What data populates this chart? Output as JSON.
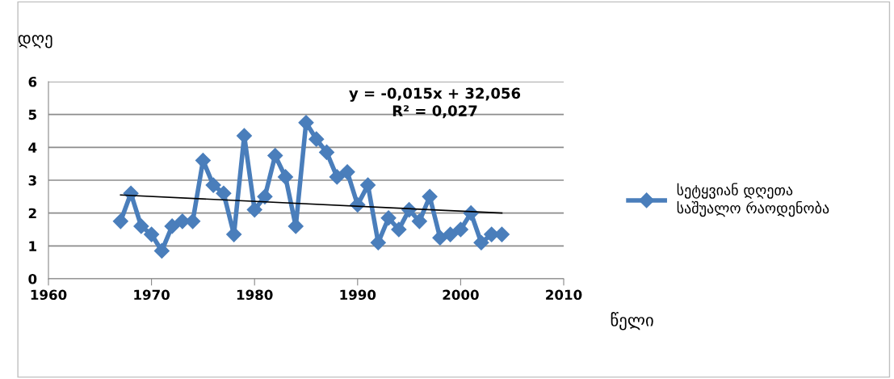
{
  "chart_data": {
    "type": "line",
    "ylabel": "დღე",
    "xlabel": "წელი",
    "x": [
      1967,
      1968,
      1969,
      1970,
      1971,
      1972,
      1973,
      1974,
      1975,
      1976,
      1977,
      1978,
      1979,
      1980,
      1981,
      1982,
      1983,
      1984,
      1985,
      1986,
      1987,
      1988,
      1989,
      1990,
      1991,
      1992,
      1993,
      1994,
      1995,
      1996,
      1997,
      1998,
      1999,
      2000,
      2001,
      2002,
      2003,
      2004
    ],
    "series": [
      {
        "name": "სეტყვიან დღეთა საშუალო რაოდენობა",
        "color": "#4a7ebb",
        "marker": "diamond",
        "values": [
          1.75,
          2.6,
          1.6,
          1.35,
          0.85,
          1.6,
          1.75,
          1.75,
          3.6,
          2.85,
          2.6,
          1.35,
          4.35,
          2.1,
          2.5,
          3.75,
          3.1,
          1.6,
          4.75,
          4.25,
          3.85,
          3.1,
          3.25,
          2.25,
          2.85,
          1.1,
          1.85,
          1.5,
          2.1,
          1.75,
          2.5,
          1.25,
          1.35,
          1.5,
          2.0,
          1.1,
          1.35,
          1.35
        ]
      },
      {
        "type": "line",
        "color": "#000000",
        "marker": "none",
        "x": [
          1967,
          2004
        ],
        "values": [
          2.55,
          2.0
        ]
      }
    ],
    "annotations": [
      "y = -0,015x + 32,056\nR² = 0,027"
    ],
    "xlim": [
      1960,
      2010
    ],
    "xticks": [
      1960,
      1970,
      1980,
      1990,
      2000,
      2010
    ],
    "ylim": [
      0,
      6
    ],
    "yticks": [
      0,
      1,
      2,
      3,
      4,
      5,
      6
    ],
    "grid": "y",
    "legend": "right",
    "line_style": "solid"
  }
}
